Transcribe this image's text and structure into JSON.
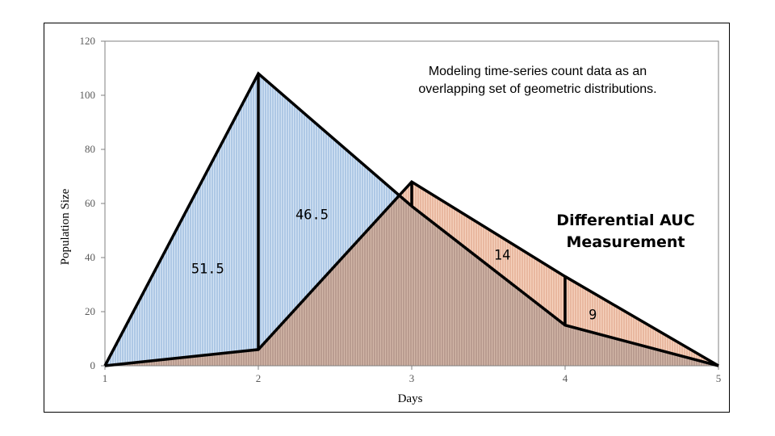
{
  "chart_data": {
    "type": "area",
    "xlabel": "Days",
    "ylabel": "Population Size",
    "xlim": [
      1,
      5
    ],
    "ylim": [
      0,
      120
    ],
    "xticks": [
      1,
      2,
      3,
      4,
      5
    ],
    "yticks": [
      0,
      20,
      40,
      60,
      80,
      100,
      120
    ],
    "grid": false,
    "series": [
      {
        "x": [
          1,
          2,
          3
        ],
        "y": [
          0,
          108,
          59
        ],
        "color": "#b9d2ec"
      },
      {
        "x": [
          1,
          2,
          3,
          4,
          5
        ],
        "y": [
          0,
          6,
          68,
          33,
          0
        ],
        "color": "#f2b99a"
      }
    ],
    "vertical_segments": [
      {
        "x": 2,
        "y_from": 6,
        "y_to": 108
      },
      {
        "x": 3,
        "y_from": 59,
        "y_to": 68
      },
      {
        "x": 4,
        "y_from": 15,
        "y_to": 33
      }
    ],
    "boundary_path": {
      "x": [
        3,
        4,
        5
      ],
      "y": [
        59,
        15,
        0
      ]
    },
    "area_labels": [
      {
        "text": "51.5",
        "x": 1.67,
        "y": 36
      },
      {
        "text": "46.5",
        "x": 2.35,
        "y": 56
      },
      {
        "text": "14",
        "x": 3.59,
        "y": 41
      },
      {
        "text": "9",
        "x": 4.18,
        "y": 19
      }
    ],
    "annotations": [
      "Modeling time-series count data as an",
      "overlapping set of geometric distributions."
    ],
    "callout": [
      "Differential AUC",
      "Measurement"
    ]
  }
}
